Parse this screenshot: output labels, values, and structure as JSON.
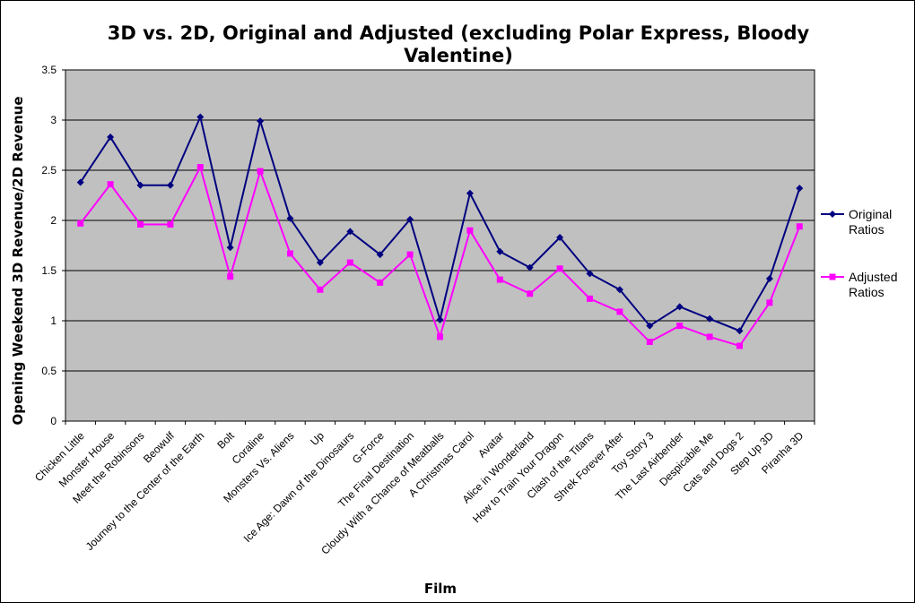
{
  "chart_data": {
    "type": "line",
    "title": "3D vs. 2D, Original and Adjusted (excluding Polar Express, Bloody Valentine)",
    "title_lines": [
      "3D vs. 2D, Original and Adjusted (excluding Polar Express, Bloody",
      "Valentine)"
    ],
    "xlabel": "Film",
    "ylabel": "Opening Weekend 3D Revenue/2D Revenue",
    "ylim": [
      0,
      3.5
    ],
    "yticks": [
      "0",
      "0.5",
      "1",
      "1.5",
      "2",
      "2.5",
      "3",
      "3.5"
    ],
    "grid": true,
    "legend_position": "right",
    "plot_background": "#c0c0c0",
    "categories": [
      "Chicken Little",
      "Monster House",
      "Meet the Robinsons",
      "Beowulf",
      "Journey to the Center of the Earth",
      "Bolt",
      "Coraline",
      "Monsters Vs. Aliens",
      "Up",
      "Ice Age: Dawn of the Dinosaurs",
      "G-Force",
      "The Final Destination",
      "Cloudy With a Chance of Meatballs",
      "A Christmas Carol",
      "Avatar",
      "Alice in Wonderland",
      "How to Train Your Dragon",
      "Clash of the Titans",
      "Shrek Forever After",
      "Toy Story 3",
      "The Last Airbender",
      "Despicable Me",
      "Cats and Dogs 2",
      "Step Up 3D",
      "Piranha 3D"
    ],
    "series": [
      {
        "name": "Original Ratios",
        "legend_lines": [
          "Original",
          "Ratios"
        ],
        "color": "#000080",
        "marker": "diamond",
        "values": [
          2.38,
          2.83,
          2.35,
          2.35,
          3.03,
          1.73,
          2.99,
          2.02,
          1.58,
          1.89,
          1.66,
          2.01,
          1.01,
          2.27,
          1.69,
          1.53,
          1.83,
          1.47,
          1.31,
          0.95,
          1.14,
          1.02,
          0.9,
          1.42,
          2.32
        ]
      },
      {
        "name": "Adjusted Ratios",
        "legend_lines": [
          "Adjusted",
          "Ratios"
        ],
        "color": "#ff00ff",
        "marker": "square",
        "values": [
          1.97,
          2.36,
          1.96,
          1.96,
          2.53,
          1.44,
          2.49,
          1.67,
          1.31,
          1.58,
          1.38,
          1.66,
          0.84,
          1.9,
          1.41,
          1.27,
          1.52,
          1.22,
          1.09,
          0.79,
          0.95,
          0.84,
          0.75,
          1.18,
          1.94
        ]
      }
    ]
  }
}
